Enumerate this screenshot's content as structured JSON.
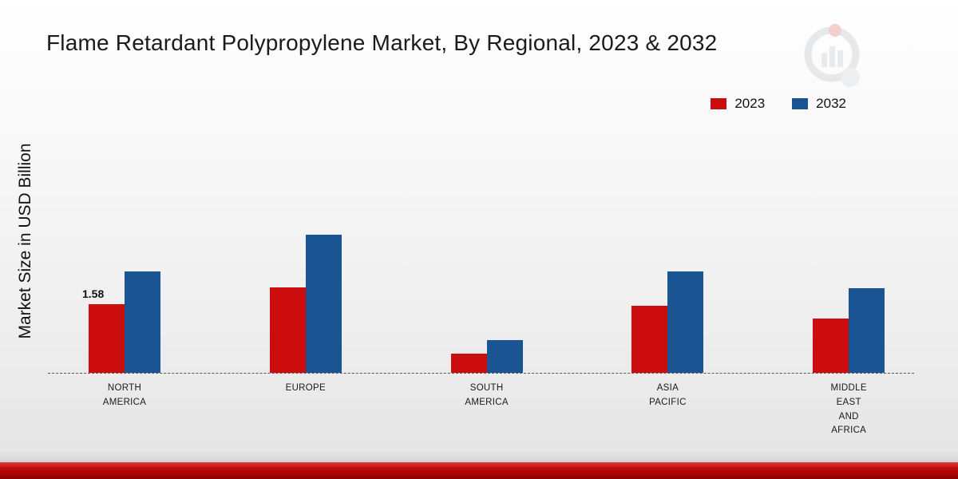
{
  "title": "Flame Retardant Polypropylene Market, By Regional, 2023 & 2032",
  "ylabel": "Market Size in USD Billion",
  "colors": {
    "series_2023": "#cc0d0d",
    "series_2032": "#1a5492",
    "footer_red": "#c40b0b",
    "baseline": "#555555"
  },
  "chart_data": {
    "type": "bar",
    "categories": [
      "North America",
      "Europe",
      "South America",
      "Asia Pacific",
      "Middle East and Africa"
    ],
    "category_label_lines": [
      [
        "NORTH",
        "AMERICA"
      ],
      [
        "EUROPE"
      ],
      [
        "SOUTH",
        "AMERICA"
      ],
      [
        "ASIA",
        "PACIFIC"
      ],
      [
        "MIDDLE",
        "EAST",
        "AND",
        "AFRICA"
      ]
    ],
    "series": [
      {
        "name": "2023",
        "color": "#cc0d0d",
        "values": [
          1.58,
          1.97,
          0.45,
          1.54,
          1.26
        ]
      },
      {
        "name": "2032",
        "color": "#1a5492",
        "values": [
          2.34,
          3.18,
          0.76,
          2.34,
          1.95
        ]
      }
    ],
    "value_labels": [
      {
        "series_index": 0,
        "category_index": 0,
        "text": "1.58"
      }
    ],
    "title": "Flame Retardant Polypropylene Market, By Regional, 2023 & 2032",
    "xlabel": "",
    "ylabel": "Market Size in USD Billion",
    "ylim": [
      0,
      3.5
    ],
    "grid": false,
    "legend_position": "top-right"
  }
}
